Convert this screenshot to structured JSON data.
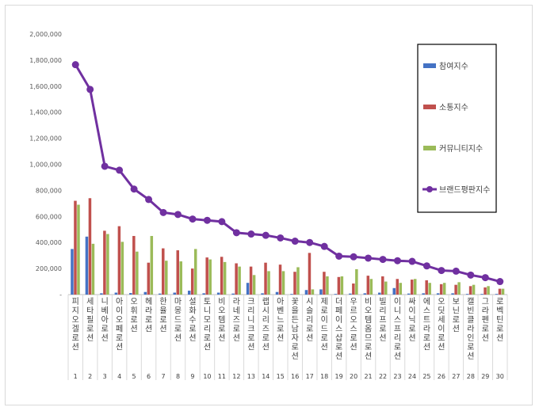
{
  "chart_data": {
    "type": "bar",
    "title": "",
    "xlabel": "",
    "ylabel": "",
    "ylim": [
      0,
      2000000
    ],
    "yticks": [
      "-",
      "200,000",
      "400,000",
      "600,000",
      "800,000",
      "1,000,000",
      "1,200,000",
      "1,400,000",
      "1,600,000",
      "1,800,000",
      "2,000,000"
    ],
    "grid": false,
    "legend_position": "right",
    "categories": [
      "피지오겔로션",
      "세타필로션",
      "니베아로션",
      "아이오페로션",
      "오휘로션",
      "헤라로션",
      "한율로션",
      "마몽드로션",
      "설화수로션",
      "토니모리로션",
      "비오템로션",
      "라네즈로션",
      "크리니크로션",
      "랩시리즈로션",
      "아벤느로션",
      "꽃을든남자로션",
      "시슬리로션",
      "제로이드로션",
      "더페이스샵로션",
      "우르오스로션",
      "비오템옴므로션",
      "빌리프로션",
      "이니스프리로션",
      "싸이닉로션",
      "에스트라로션",
      "오딧세이로션",
      "보닌로션",
      "캘빈클라인로션",
      "그라펜로션",
      "로벡틴로션"
    ],
    "ranks": [
      "1",
      "2",
      "3",
      "4",
      "5",
      "6",
      "7",
      "8",
      "9",
      "10",
      "11",
      "12",
      "13",
      "14",
      "15",
      "16",
      "17",
      "18",
      "19",
      "20",
      "21",
      "22",
      "23",
      "24",
      "25",
      "26",
      "27",
      "28",
      "29",
      "30"
    ],
    "series": [
      {
        "name": "참여지수",
        "kind": "bar",
        "color": "#4472c4",
        "values": [
          350000,
          445000,
          10000,
          15000,
          12000,
          20000,
          8000,
          15000,
          30000,
          10000,
          15000,
          8000,
          90000,
          10000,
          20000,
          5000,
          35000,
          40000,
          5000,
          8000,
          10000,
          15000,
          50000,
          8000,
          10000,
          10000,
          10000,
          5000,
          5000,
          5000
        ]
      },
      {
        "name": "소통지수",
        "kind": "bar",
        "color": "#c0504d",
        "values": [
          720000,
          740000,
          490000,
          525000,
          450000,
          245000,
          355000,
          340000,
          200000,
          285000,
          290000,
          240000,
          215000,
          245000,
          230000,
          175000,
          320000,
          175000,
          135000,
          85000,
          145000,
          140000,
          120000,
          115000,
          110000,
          80000,
          75000,
          65000,
          55000,
          45000
        ]
      },
      {
        "name": "커뮤니티지수",
        "kind": "bar",
        "color": "#9bbb59",
        "values": [
          690000,
          390000,
          465000,
          405000,
          330000,
          450000,
          260000,
          255000,
          350000,
          270000,
          250000,
          215000,
          150000,
          180000,
          180000,
          210000,
          40000,
          140000,
          140000,
          195000,
          120000,
          100000,
          90000,
          120000,
          90000,
          90000,
          95000,
          75000,
          65000,
          45000
        ]
      },
      {
        "name": "브랜드평판지수",
        "kind": "line",
        "color": "#7030a0",
        "values": [
          1765000,
          1575000,
          985000,
          955000,
          810000,
          730000,
          630000,
          615000,
          580000,
          570000,
          560000,
          475000,
          465000,
          455000,
          435000,
          410000,
          400000,
          370000,
          295000,
          290000,
          280000,
          270000,
          260000,
          255000,
          220000,
          185000,
          180000,
          150000,
          130000,
          100000
        ]
      }
    ]
  }
}
